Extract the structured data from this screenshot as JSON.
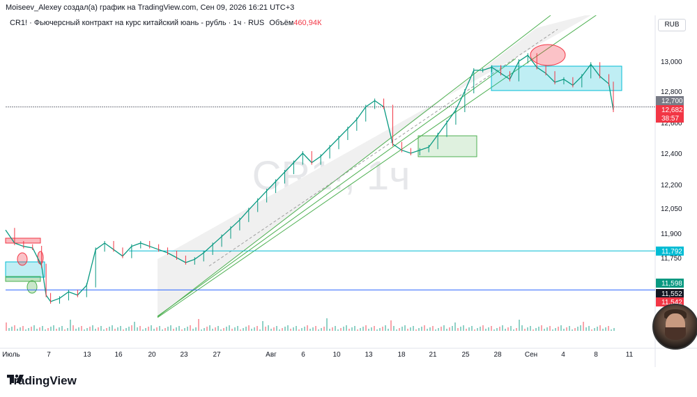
{
  "header": {
    "author_line": "Moiseev_Alexey создал(а) график на TradingView.com, Сен 09, 2026 16:21 UTC+3",
    "symbol_line": "CR1! · Фьючерсный контракт на курс китайский юань - рубль · 1ч · RUS",
    "volume_label": "Объём",
    "volume_value": "460,94К",
    "currency": "RUB",
    "watermark": "CR1!, 1ч"
  },
  "footer": {
    "brand": "TradingView"
  },
  "chart_data": {
    "type": "line",
    "y_axis": {
      "ticks": [
        "13,000",
        "12,800",
        "12,600",
        "12,400",
        "12,200",
        "12,050",
        "11,900",
        "11,750"
      ],
      "tick_values": [
        13.0,
        12.8,
        12.6,
        12.4,
        12.2,
        12.05,
        11.9,
        11.75
      ],
      "position": "right"
    },
    "x_axis": {
      "ticks": [
        "Июль",
        "7",
        "13",
        "16",
        "20",
        "23",
        "27",
        "Авг",
        "6",
        "10",
        "13",
        "18",
        "21",
        "25",
        "28",
        "Сен",
        "4",
        "8",
        "11"
      ]
    },
    "price_labels": [
      {
        "text": "12,700",
        "color": "#787b86"
      },
      {
        "text": "12,682",
        "color": "#f23645"
      },
      {
        "text": "38:57",
        "color": "#f23645"
      },
      {
        "text": "11,792",
        "color": "#00bcd4"
      },
      {
        "text": "11,598",
        "color": "#089981"
      },
      {
        "text": "11,552",
        "color": "#131722"
      },
      {
        "text": "11,542",
        "color": "#f23645"
      }
    ],
    "horizontal_levels": [
      {
        "value": 12.7,
        "color": "#787b86"
      },
      {
        "value": 11.792,
        "color": "#00bcd4"
      },
      {
        "value": 11.552,
        "color": "#2962ff"
      }
    ],
    "price_path": [
      [
        0,
        11.92
      ],
      [
        2,
        11.84
      ],
      [
        4,
        11.82
      ],
      [
        6,
        11.81
      ],
      [
        8,
        11.7
      ],
      [
        9,
        11.52
      ],
      [
        10,
        11.48
      ],
      [
        12,
        11.5
      ],
      [
        14,
        11.54
      ],
      [
        16,
        11.52
      ],
      [
        18,
        11.58
      ],
      [
        20,
        11.8
      ],
      [
        22,
        11.84
      ],
      [
        24,
        11.8
      ],
      [
        26,
        11.76
      ],
      [
        28,
        11.82
      ],
      [
        30,
        11.84
      ],
      [
        32,
        11.82
      ],
      [
        34,
        11.8
      ],
      [
        36,
        11.78
      ],
      [
        38,
        11.75
      ],
      [
        40,
        11.72
      ],
      [
        42,
        11.74
      ],
      [
        44,
        11.78
      ],
      [
        46,
        11.83
      ],
      [
        48,
        11.88
      ],
      [
        50,
        11.93
      ],
      [
        52,
        11.98
      ],
      [
        54,
        12.04
      ],
      [
        56,
        12.1
      ],
      [
        58,
        12.16
      ],
      [
        60,
        12.22
      ],
      [
        62,
        12.28
      ],
      [
        64,
        12.34
      ],
      [
        66,
        12.4
      ],
      [
        68,
        12.34
      ],
      [
        70,
        12.38
      ],
      [
        72,
        12.44
      ],
      [
        74,
        12.5
      ],
      [
        76,
        12.56
      ],
      [
        78,
        12.62
      ],
      [
        80,
        12.7
      ],
      [
        82,
        12.74
      ],
      [
        84,
        12.7
      ],
      [
        86,
        12.46
      ],
      [
        88,
        12.42
      ],
      [
        90,
        12.4
      ],
      [
        92,
        12.42
      ],
      [
        94,
        12.44
      ],
      [
        96,
        12.52
      ],
      [
        98,
        12.6
      ],
      [
        100,
        12.68
      ],
      [
        102,
        12.8
      ],
      [
        104,
        12.94
      ],
      [
        106,
        12.94
      ],
      [
        108,
        12.96
      ],
      [
        110,
        12.92
      ],
      [
        112,
        12.88
      ],
      [
        114,
        13.0
      ],
      [
        116,
        13.04
      ],
      [
        118,
        12.96
      ],
      [
        120,
        12.92
      ],
      [
        122,
        12.86
      ],
      [
        124,
        12.88
      ],
      [
        126,
        12.84
      ],
      [
        128,
        12.9
      ],
      [
        130,
        12.98
      ],
      [
        132,
        12.9
      ],
      [
        134,
        12.85
      ],
      [
        135,
        12.68
      ]
    ],
    "grid": false
  }
}
